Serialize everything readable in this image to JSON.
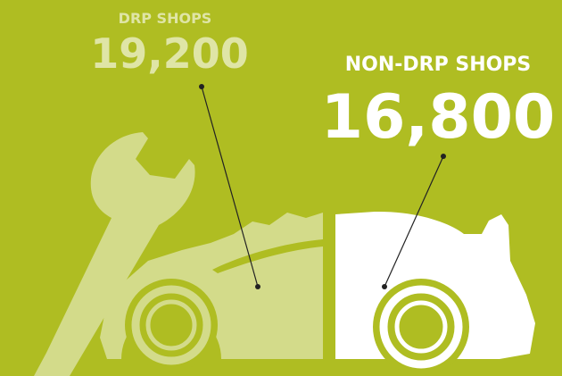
{
  "items": [
    {
      "label": "DRP SHOPS",
      "value": "19,200"
    },
    {
      "label": "NON-DRP SHOPS",
      "value": "16,800"
    }
  ]
}
